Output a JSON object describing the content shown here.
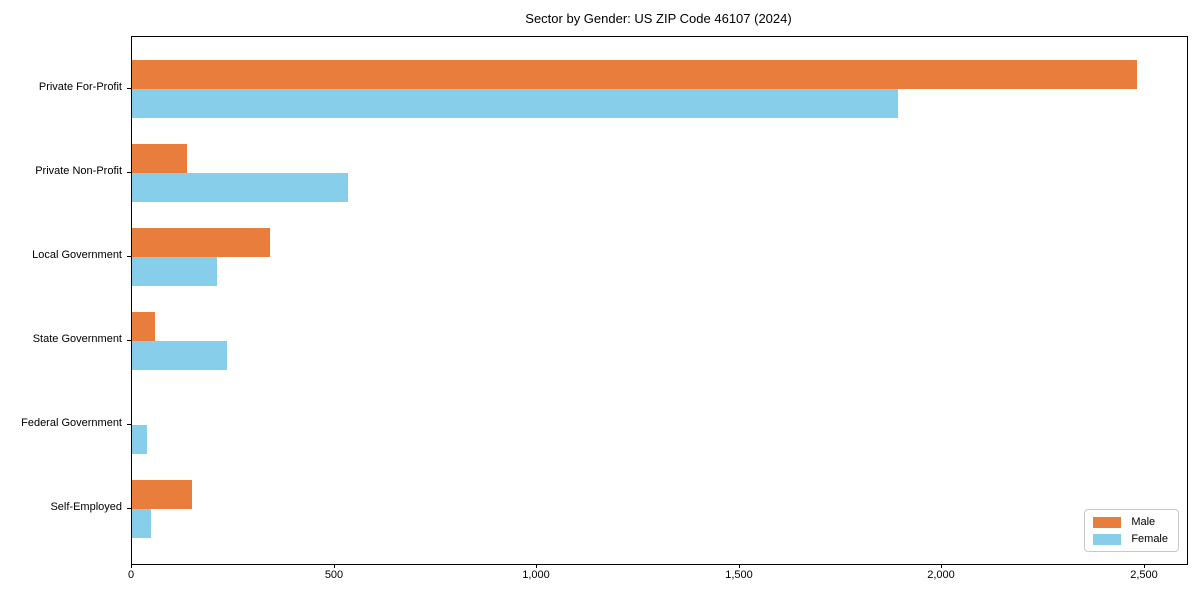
{
  "title": "Sector by Gender: US ZIP Code 46107 (2024)",
  "colors": {
    "male": "#E87D3C",
    "female": "#87CEEB",
    "axis": "#000000",
    "legend_border": "#C8C8C8",
    "background": "#FFFFFF"
  },
  "chart_data": {
    "type": "bar",
    "orientation": "horizontal",
    "title": "Sector by Gender: US ZIP Code 46107 (2024)",
    "categories": [
      "Private For-Profit",
      "Private Non-Profit",
      "Local Government",
      "State Government",
      "Federal Government",
      "Self-Employed"
    ],
    "series": [
      {
        "name": "Male",
        "color": "#E87D3C",
        "values": [
          2480,
          135,
          340,
          57,
          0,
          148
        ]
      },
      {
        "name": "Female",
        "color": "#87CEEB",
        "values": [
          1890,
          533,
          210,
          234,
          37,
          47
        ]
      }
    ],
    "xlabel": "",
    "ylabel": "",
    "xlim": [
      0,
      2604
    ],
    "x_ticks": [
      0,
      500,
      1000,
      1500,
      2000,
      2500
    ],
    "x_tick_labels": [
      "0",
      "500",
      "1,000",
      "1,500",
      "2,000",
      "2,500"
    ],
    "grid": false,
    "legend_position": "lower right"
  },
  "legend": {
    "items": [
      {
        "label": "Male"
      },
      {
        "label": "Female"
      }
    ]
  }
}
